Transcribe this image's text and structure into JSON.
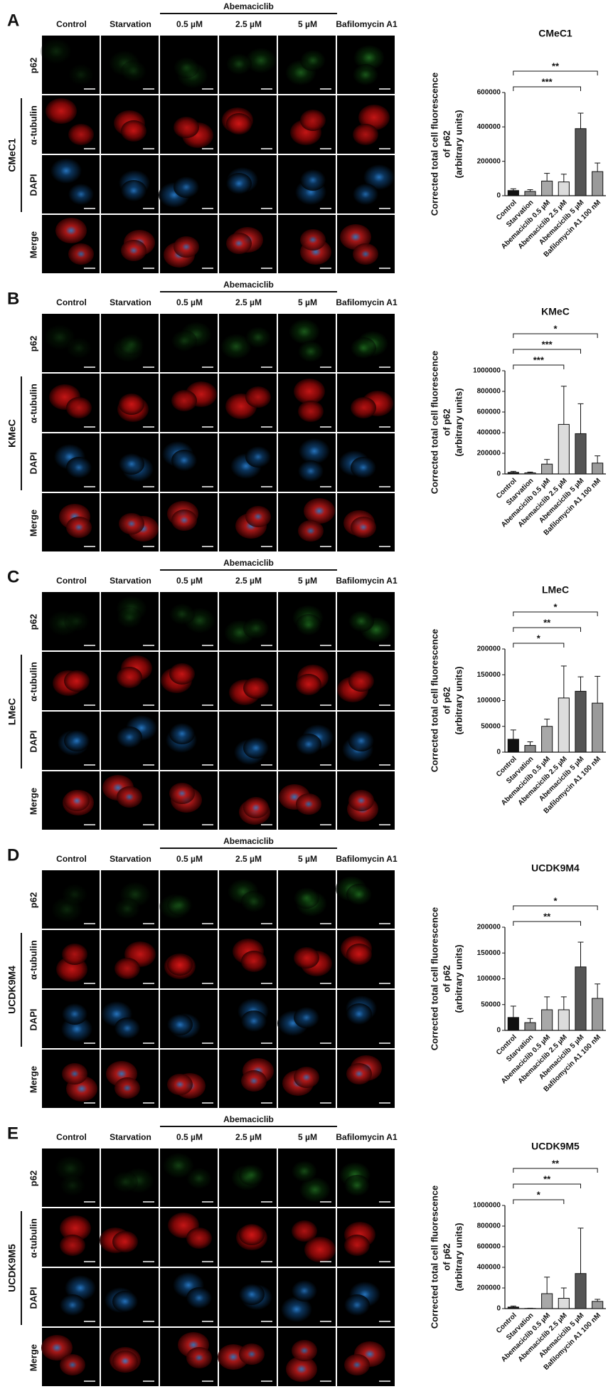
{
  "group_label": "Abemaciclib",
  "columns": [
    "Control",
    "Starvation",
    "0.5 µM",
    "2.5 µM",
    "5 µM",
    "Bafilomycin A1"
  ],
  "rows": [
    "p62",
    "α-tubulin",
    "DAPI",
    "Merge"
  ],
  "panels": [
    {
      "letter": "A",
      "cell_line": "CMeC1"
    },
    {
      "letter": "B",
      "cell_line": "KMeC"
    },
    {
      "letter": "C",
      "cell_line": "LMeC"
    },
    {
      "letter": "D",
      "cell_line": "UCDK9M4"
    },
    {
      "letter": "E",
      "cell_line": "UCDK9M5"
    }
  ],
  "chart_data": [
    {
      "type": "bar",
      "title": "CMeC1",
      "y_label": [
        "Corrected total cell fluorescence",
        "of p62",
        "(arbitrary units)"
      ],
      "categories": [
        "Control",
        "Starvation",
        "Abemaciclib 0.5 µM",
        "Abemaciclib 2.5 µM",
        "Abemaciclib 5 µM",
        "Bafilomycin A1 100 nM"
      ],
      "values": [
        30000,
        25000,
        85000,
        80000,
        390000,
        140000
      ],
      "errors": [
        10000,
        10000,
        45000,
        45000,
        90000,
        50000
      ],
      "significance": [
        null,
        null,
        null,
        null,
        "***",
        "**"
      ],
      "colors": [
        "#111111",
        "#8a8a8a",
        "#a8a8a8",
        "#dcdcdc",
        "#555555",
        "#9a9a9a"
      ],
      "ylim": [
        0,
        600000
      ],
      "yticks": [
        0,
        200000,
        400000,
        600000
      ]
    },
    {
      "type": "bar",
      "title": "KMeC",
      "y_label": [
        "Corrected total cell fluorescence",
        "of p62",
        "(arbitrary units)"
      ],
      "categories": [
        "Control",
        "Starvation",
        "Abemaciclib 0.5 µM",
        "Abemaciclib 2.5 µM",
        "Abemaciclib 5 µM",
        "Bafilomycin A1 100 nM"
      ],
      "values": [
        15000,
        10000,
        95000,
        480000,
        390000,
        105000
      ],
      "errors": [
        10000,
        8000,
        45000,
        370000,
        290000,
        70000
      ],
      "significance": [
        null,
        null,
        null,
        "***",
        "***",
        "*"
      ],
      "colors": [
        "#111111",
        "#8a8a8a",
        "#a8a8a8",
        "#dcdcdc",
        "#555555",
        "#9a9a9a"
      ],
      "ylim": [
        0,
        1000000
      ],
      "yticks": [
        0,
        200000,
        400000,
        600000,
        800000,
        1000000
      ]
    },
    {
      "type": "bar",
      "title": "LMeC",
      "y_label": [
        "Corrected total cell fluorescence",
        "of p62",
        "(arbitrary units)"
      ],
      "categories": [
        "Control",
        "Starvation",
        "Abemaciclib 0.5 µM",
        "Abemaciclib 2.5 µM",
        "Abemaciclib 5 µM",
        "Bafilomycin A1 100 nM"
      ],
      "values": [
        25000,
        13000,
        50000,
        105000,
        118000,
        95000
      ],
      "errors": [
        18000,
        7000,
        14000,
        62000,
        28000,
        52000
      ],
      "significance": [
        null,
        null,
        null,
        "*",
        "**",
        "*"
      ],
      "colors": [
        "#111111",
        "#8a8a8a",
        "#a8a8a8",
        "#dcdcdc",
        "#555555",
        "#9a9a9a"
      ],
      "ylim": [
        0,
        200000
      ],
      "yticks": [
        0,
        50000,
        100000,
        150000,
        200000
      ]
    },
    {
      "type": "bar",
      "title": "UCDK9M4",
      "y_label": [
        "Corrected total cell fluorescence",
        "of p62",
        "(arbitrary units)"
      ],
      "categories": [
        "Control",
        "Starvation",
        "Abemaciclib 0.5 µM",
        "Abemaciclib 2.5 µM",
        "Abemaciclib 5 µM",
        "Bafilomycin A1 100 nM"
      ],
      "values": [
        25000,
        15000,
        40000,
        40000,
        123000,
        62000
      ],
      "errors": [
        22000,
        8000,
        25000,
        25000,
        48000,
        28000
      ],
      "significance": [
        null,
        null,
        null,
        null,
        "**",
        "*"
      ],
      "colors": [
        "#111111",
        "#8a8a8a",
        "#a8a8a8",
        "#dcdcdc",
        "#555555",
        "#9a9a9a"
      ],
      "ylim": [
        0,
        200000
      ],
      "yticks": [
        0,
        50000,
        100000,
        150000,
        200000
      ]
    },
    {
      "type": "bar",
      "title": "UCDK9M5",
      "y_label": [
        "Corrected total cell fluorescence",
        "of p62",
        "(arbitrary units)"
      ],
      "categories": [
        "Control",
        "Starvation",
        "Abemaciclib 0.5 µM",
        "Abemaciclib 2.5 µM",
        "Abemaciclib 5 µM",
        "Bafilomycin A1 100 nM"
      ],
      "values": [
        15000,
        2000,
        145000,
        100000,
        340000,
        70000
      ],
      "errors": [
        10000,
        2000,
        160000,
        100000,
        440000,
        20000
      ],
      "significance": [
        null,
        null,
        null,
        "*",
        "**",
        "**"
      ],
      "colors": [
        "#111111",
        "#8a8a8a",
        "#a8a8a8",
        "#dcdcdc",
        "#555555",
        "#9a9a9a"
      ],
      "ylim": [
        0,
        1000000
      ],
      "yticks": [
        0,
        200000,
        400000,
        600000,
        800000,
        1000000
      ]
    }
  ]
}
